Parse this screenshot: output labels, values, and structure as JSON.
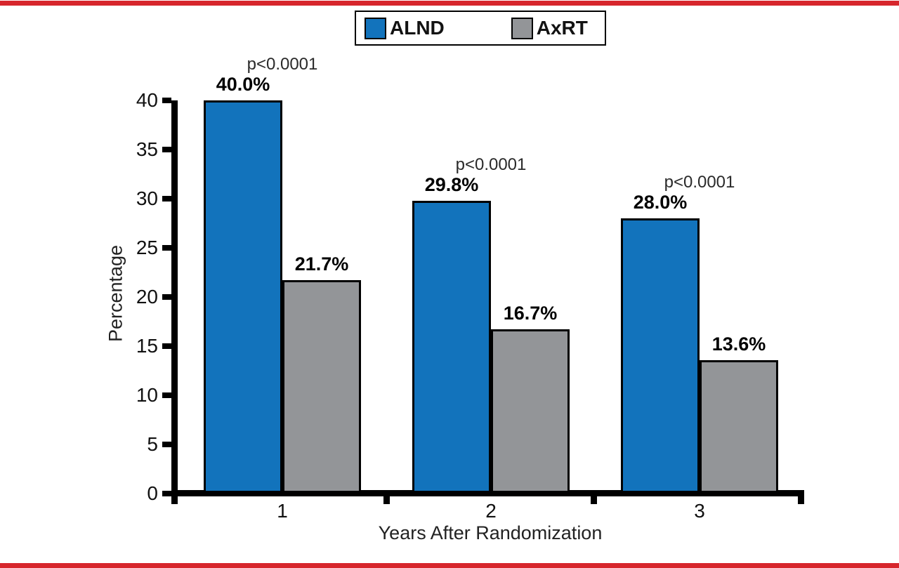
{
  "figure": {
    "accent_line_color": "#d7262c"
  },
  "legend": {
    "items": [
      {
        "label": "ALND",
        "color": "#1273bc"
      },
      {
        "label": "AxRT",
        "color": "#939598"
      }
    ]
  },
  "chart_data": {
    "type": "bar",
    "title": "",
    "categories": [
      "1",
      "2",
      "3"
    ],
    "series": [
      {
        "name": "ALND",
        "color": "#1273bc",
        "values": [
          40.0,
          29.8,
          28.0
        ],
        "labels": [
          "40.0%",
          "29.8%",
          "28.0%"
        ]
      },
      {
        "name": "AxRT",
        "color": "#939598",
        "values": [
          21.7,
          16.7,
          13.6
        ],
        "labels": [
          "21.7%",
          "16.7%",
          "13.6%"
        ]
      }
    ],
    "p_values": [
      "p<0.0001",
      "p<0.0001",
      "p<0.0001"
    ],
    "xlabel": "Years After Randomization",
    "ylabel": "Percentage",
    "ylim": [
      0,
      40
    ],
    "yticks": [
      0,
      5,
      10,
      15,
      20,
      25,
      30,
      35,
      40
    ],
    "grid": false,
    "legend_position": "top-center",
    "bar_border_color": "#000000"
  }
}
